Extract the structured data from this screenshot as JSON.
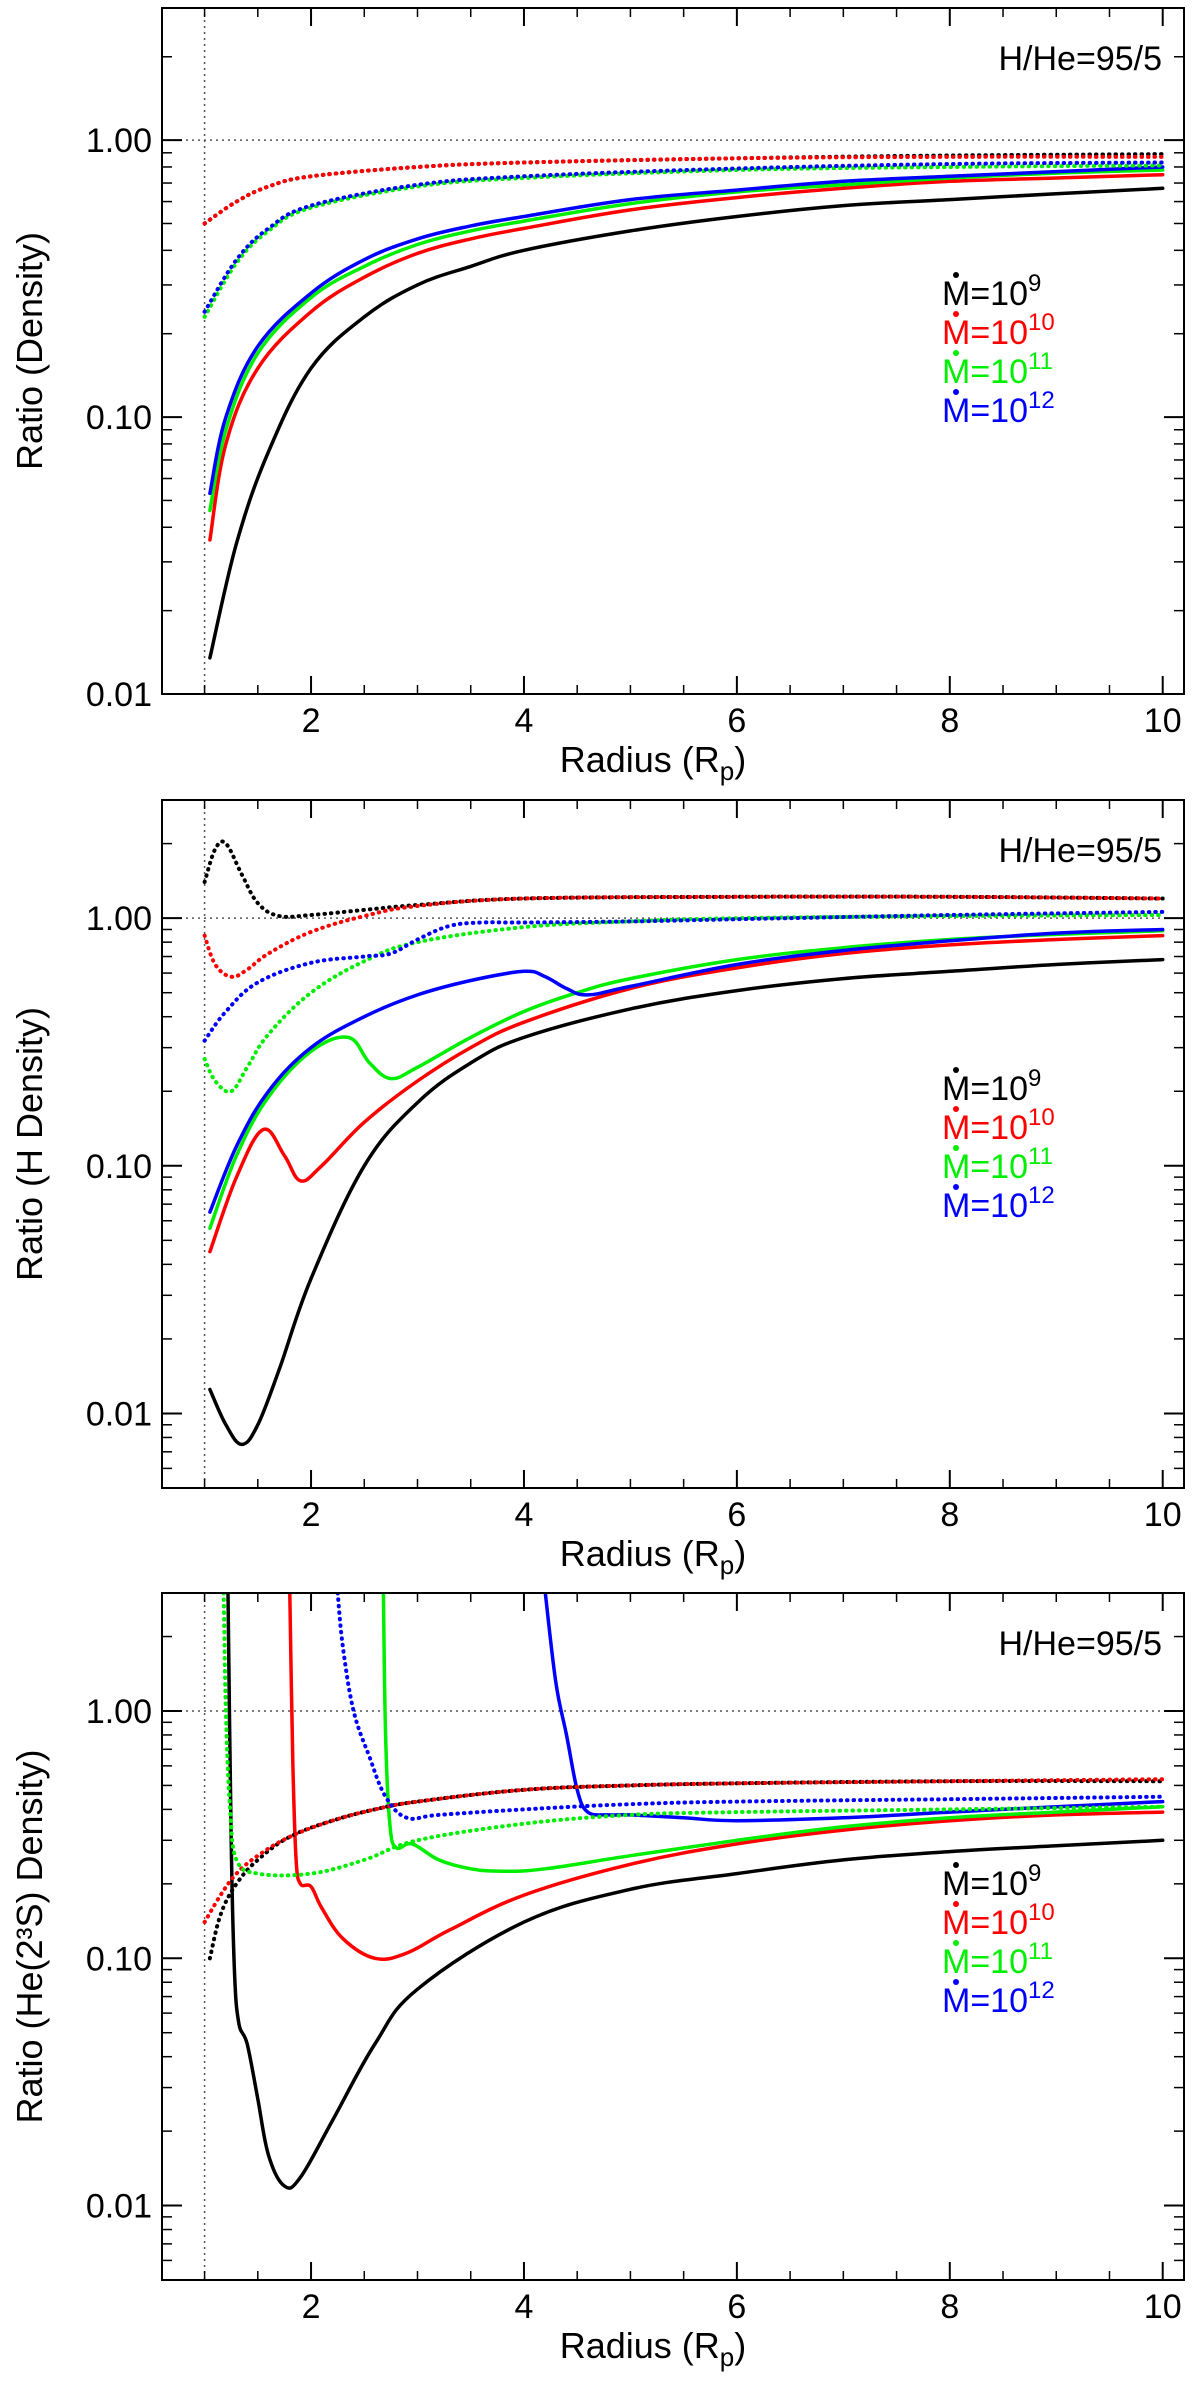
{
  "chart_data": [
    {
      "type": "line",
      "title": "",
      "annotation": "H/He=95/5",
      "xlabel": "Radius (R",
      "xlabel_sub": "p",
      "xlabel_close": ")",
      "ylabel": "Ratio (Density)",
      "xlim": [
        0.6,
        10.2
      ],
      "ylim": [
        0.01,
        3.0
      ],
      "yscale": "log",
      "xticks": [
        2,
        4,
        6,
        8,
        10
      ],
      "xtick_labels": [
        "2",
        "4",
        "6",
        "8",
        "10"
      ],
      "yticks": [
        0.01,
        0.1,
        1.0
      ],
      "ytick_labels": [
        "0.01",
        "0.10",
        "1.00"
      ],
      "reference_lines": {
        "x": 1.0,
        "y": 1.0
      },
      "legend": {
        "placement": "right",
        "entries": [
          {
            "text": "M=10",
            "sup": "9",
            "color": "#000000"
          },
          {
            "text": "M=10",
            "sup": "10",
            "color": "#ff0000"
          },
          {
            "text": "M=10",
            "sup": "11",
            "color": "#00ee00"
          },
          {
            "text": "M=10",
            "sup": "12",
            "color": "#0000ff"
          }
        ]
      },
      "series": [
        {
          "color": "#000000",
          "style": "solid",
          "x": [
            1.05,
            1.3,
            1.6,
            2.0,
            2.5,
            3.0,
            3.5,
            4.0,
            5.0,
            6.0,
            7.0,
            8.0,
            9.0,
            10.0
          ],
          "y": [
            0.0135,
            0.035,
            0.075,
            0.15,
            0.23,
            0.3,
            0.35,
            0.4,
            0.47,
            0.53,
            0.58,
            0.61,
            0.64,
            0.67
          ]
        },
        {
          "color": "#ff0000",
          "style": "solid",
          "x": [
            1.05,
            1.2,
            1.5,
            2.0,
            2.5,
            3.0,
            3.5,
            4.0,
            5.0,
            6.0,
            7.0,
            8.0,
            9.0,
            10.0
          ],
          "y": [
            0.036,
            0.08,
            0.15,
            0.24,
            0.32,
            0.39,
            0.44,
            0.48,
            0.56,
            0.62,
            0.67,
            0.71,
            0.73,
            0.75
          ]
        },
        {
          "color": "#00ee00",
          "style": "solid",
          "x": [
            1.05,
            1.2,
            1.5,
            2.0,
            2.5,
            3.0,
            3.5,
            4.0,
            5.0,
            6.0,
            7.0,
            8.0,
            9.0,
            10.0
          ],
          "y": [
            0.046,
            0.09,
            0.17,
            0.27,
            0.35,
            0.42,
            0.47,
            0.51,
            0.59,
            0.65,
            0.69,
            0.73,
            0.76,
            0.78
          ]
        },
        {
          "color": "#0000ff",
          "style": "solid",
          "x": [
            1.05,
            1.2,
            1.5,
            2.0,
            2.5,
            3.0,
            3.5,
            4.0,
            5.0,
            6.0,
            7.0,
            8.0,
            9.0,
            10.0
          ],
          "y": [
            0.053,
            0.1,
            0.18,
            0.28,
            0.37,
            0.44,
            0.49,
            0.53,
            0.61,
            0.66,
            0.71,
            0.74,
            0.77,
            0.8
          ]
        },
        {
          "color": "#000000",
          "style": "dotted",
          "x": [
            1.0,
            1.3,
            1.6,
            2.0,
            3.0,
            4.0,
            6.0,
            8.0,
            10.0
          ],
          "y": [
            0.5,
            0.6,
            0.68,
            0.74,
            0.8,
            0.83,
            0.86,
            0.88,
            0.89
          ]
        },
        {
          "color": "#ff0000",
          "style": "dotted",
          "x": [
            1.0,
            1.3,
            1.6,
            2.0,
            3.0,
            4.0,
            6.0,
            8.0,
            10.0
          ],
          "y": [
            0.5,
            0.6,
            0.68,
            0.74,
            0.8,
            0.83,
            0.86,
            0.87,
            0.87
          ]
        },
        {
          "color": "#00ee00",
          "style": "dotted",
          "x": [
            1.0,
            1.3,
            1.6,
            2.0,
            3.0,
            4.0,
            6.0,
            8.0,
            10.0
          ],
          "y": [
            0.23,
            0.36,
            0.47,
            0.57,
            0.68,
            0.73,
            0.78,
            0.8,
            0.81
          ]
        },
        {
          "color": "#0000ff",
          "style": "dotted",
          "x": [
            1.0,
            1.3,
            1.6,
            2.0,
            3.0,
            4.0,
            6.0,
            8.0,
            10.0
          ],
          "y": [
            0.24,
            0.37,
            0.48,
            0.58,
            0.69,
            0.74,
            0.79,
            0.82,
            0.83
          ]
        }
      ]
    },
    {
      "type": "line",
      "title": "",
      "annotation": "H/He=95/5",
      "xlabel": "Radius (R",
      "xlabel_sub": "p",
      "xlabel_close": ")",
      "ylabel": "Ratio (H Density)",
      "xlim": [
        0.6,
        10.2
      ],
      "ylim": [
        0.005,
        3.0
      ],
      "yscale": "log",
      "xticks": [
        2,
        4,
        6,
        8,
        10
      ],
      "xtick_labels": [
        "2",
        "4",
        "6",
        "8",
        "10"
      ],
      "yticks": [
        0.01,
        0.1,
        1.0
      ],
      "ytick_labels": [
        "0.01",
        "0.10",
        "1.00"
      ],
      "reference_lines": {
        "x": 1.0,
        "y": 1.0
      },
      "legend": {
        "placement": "right",
        "entries": [
          {
            "text": "M=10",
            "sup": "9",
            "color": "#000000"
          },
          {
            "text": "M=10",
            "sup": "10",
            "color": "#ff0000"
          },
          {
            "text": "M=10",
            "sup": "11",
            "color": "#00ee00"
          },
          {
            "text": "M=10",
            "sup": "12",
            "color": "#0000ff"
          }
        ]
      },
      "series": [
        {
          "color": "#000000",
          "style": "solid",
          "x": [
            1.05,
            1.2,
            1.35,
            1.5,
            1.7,
            2.0,
            2.5,
            3.0,
            3.5,
            4.0,
            5.0,
            6.0,
            7.0,
            8.0,
            9.0,
            10.0
          ],
          "y": [
            0.0125,
            0.009,
            0.0075,
            0.009,
            0.015,
            0.035,
            0.1,
            0.18,
            0.26,
            0.33,
            0.43,
            0.51,
            0.57,
            0.61,
            0.65,
            0.68
          ]
        },
        {
          "color": "#ff0000",
          "style": "solid",
          "x": [
            1.05,
            1.3,
            1.55,
            1.75,
            1.9,
            2.1,
            2.5,
            3.0,
            3.5,
            4.0,
            5.0,
            6.0,
            7.0,
            8.0,
            9.0,
            10.0
          ],
          "y": [
            0.045,
            0.09,
            0.14,
            0.11,
            0.087,
            0.1,
            0.15,
            0.22,
            0.3,
            0.38,
            0.52,
            0.63,
            0.72,
            0.78,
            0.82,
            0.85
          ]
        },
        {
          "color": "#00ee00",
          "style": "solid",
          "x": [
            1.05,
            1.3,
            1.6,
            2.0,
            2.35,
            2.55,
            2.75,
            3.0,
            3.5,
            4.0,
            4.5,
            5.0,
            6.0,
            7.0,
            8.0,
            9.0,
            10.0
          ],
          "y": [
            0.056,
            0.11,
            0.19,
            0.29,
            0.33,
            0.26,
            0.225,
            0.25,
            0.33,
            0.42,
            0.5,
            0.57,
            0.68,
            0.76,
            0.82,
            0.86,
            0.89
          ]
        },
        {
          "color": "#0000ff",
          "style": "solid",
          "x": [
            1.05,
            1.3,
            1.6,
            2.0,
            2.5,
            3.0,
            3.5,
            4.0,
            4.2,
            4.4,
            4.6,
            5.0,
            6.0,
            7.0,
            8.0,
            9.0,
            10.0
          ],
          "y": [
            0.065,
            0.12,
            0.2,
            0.3,
            0.4,
            0.49,
            0.56,
            0.61,
            0.58,
            0.52,
            0.49,
            0.53,
            0.65,
            0.74,
            0.81,
            0.87,
            0.9
          ]
        },
        {
          "color": "#000000",
          "style": "dotted",
          "x": [
            1.0,
            1.1,
            1.2,
            1.35,
            1.5,
            1.7,
            2.0,
            2.5,
            3.0,
            4.0,
            6.0,
            8.0,
            10.0
          ],
          "y": [
            1.4,
            1.9,
            2.0,
            1.5,
            1.15,
            1.02,
            1.03,
            1.08,
            1.13,
            1.2,
            1.22,
            1.22,
            1.2
          ]
        },
        {
          "color": "#ff0000",
          "style": "dotted",
          "x": [
            1.0,
            1.1,
            1.25,
            1.4,
            1.6,
            2.0,
            2.5,
            3.0,
            4.0,
            6.0,
            8.0,
            10.0
          ],
          "y": [
            0.85,
            0.65,
            0.58,
            0.62,
            0.72,
            0.88,
            1.02,
            1.12,
            1.2,
            1.22,
            1.22,
            1.2
          ]
        },
        {
          "color": "#00ee00",
          "style": "dotted",
          "x": [
            1.0,
            1.1,
            1.25,
            1.4,
            1.6,
            2.0,
            2.5,
            3.0,
            4.0,
            5.0,
            6.0,
            8.0,
            10.0
          ],
          "y": [
            0.27,
            0.22,
            0.2,
            0.25,
            0.34,
            0.5,
            0.67,
            0.8,
            0.92,
            0.97,
            1.0,
            1.02,
            1.03
          ]
        },
        {
          "color": "#0000ff",
          "style": "dotted",
          "x": [
            1.0,
            1.2,
            1.5,
            2.0,
            2.5,
            2.75,
            3.0,
            3.3,
            3.6,
            4.0,
            5.0,
            6.0,
            8.0,
            10.0
          ],
          "y": [
            0.32,
            0.42,
            0.55,
            0.66,
            0.7,
            0.72,
            0.82,
            0.93,
            0.96,
            0.96,
            0.97,
            0.99,
            1.03,
            1.06
          ]
        }
      ]
    },
    {
      "type": "line",
      "title": "",
      "annotation": "H/He=95/5",
      "xlabel": "Radius (R",
      "xlabel_sub": "p",
      "xlabel_close": ")",
      "ylabel": "Ratio (He(2³S) Density)",
      "xlim": [
        0.6,
        10.2
      ],
      "ylim": [
        0.005,
        3.0
      ],
      "yscale": "log",
      "xticks": [
        2,
        4,
        6,
        8,
        10
      ],
      "xtick_labels": [
        "2",
        "4",
        "6",
        "8",
        "10"
      ],
      "yticks": [
        0.01,
        0.1,
        1.0
      ],
      "ytick_labels": [
        "0.01",
        "0.10",
        "1.00"
      ],
      "reference_lines": {
        "x": 1.0,
        "y": 1.0
      },
      "legend": {
        "placement": "right",
        "entries": [
          {
            "text": "M=10",
            "sup": "9",
            "color": "#000000"
          },
          {
            "text": "M=10",
            "sup": "10",
            "color": "#ff0000"
          },
          {
            "text": "M=10",
            "sup": "11",
            "color": "#00ee00"
          },
          {
            "text": "M=10",
            "sup": "12",
            "color": "#0000ff"
          }
        ]
      },
      "series": [
        {
          "color": "#000000",
          "style": "solid",
          "x": [
            1.22,
            1.25,
            1.28,
            1.32,
            1.4,
            1.5,
            1.6,
            1.75,
            1.9,
            2.2,
            2.6,
            3.0,
            4.0,
            5.0,
            6.0,
            7.0,
            8.0,
            9.0,
            10.0
          ],
          "y": [
            3.0,
            0.3,
            0.09,
            0.055,
            0.045,
            0.027,
            0.016,
            0.012,
            0.013,
            0.022,
            0.045,
            0.075,
            0.14,
            0.19,
            0.22,
            0.25,
            0.27,
            0.285,
            0.3
          ]
        },
        {
          "color": "#ff0000",
          "style": "solid",
          "x": [
            1.8,
            1.83,
            1.86,
            1.9,
            2.0,
            2.1,
            2.3,
            2.6,
            2.9,
            3.3,
            4.0,
            5.0,
            6.0,
            7.0,
            8.0,
            9.0,
            10.0
          ],
          "y": [
            3.0,
            0.6,
            0.25,
            0.2,
            0.195,
            0.16,
            0.12,
            0.1,
            0.105,
            0.13,
            0.18,
            0.24,
            0.29,
            0.33,
            0.36,
            0.38,
            0.39
          ]
        },
        {
          "color": "#00ee00",
          "style": "solid",
          "x": [
            2.68,
            2.7,
            2.74,
            2.8,
            2.95,
            3.2,
            3.5,
            3.8,
            4.2,
            5.0,
            6.0,
            7.0,
            8.0,
            9.0,
            10.0
          ],
          "y": [
            3.0,
            0.8,
            0.35,
            0.28,
            0.29,
            0.25,
            0.23,
            0.225,
            0.23,
            0.26,
            0.3,
            0.34,
            0.37,
            0.39,
            0.41
          ]
        },
        {
          "color": "#0000ff",
          "style": "solid",
          "x": [
            4.2,
            4.3,
            4.4,
            4.5,
            4.6,
            4.8,
            5.0,
            5.5,
            6.0,
            7.0,
            8.0,
            9.0,
            10.0
          ],
          "y": [
            3.0,
            1.3,
            0.8,
            0.48,
            0.39,
            0.38,
            0.38,
            0.37,
            0.36,
            0.37,
            0.39,
            0.41,
            0.43
          ]
        },
        {
          "color": "#000000",
          "style": "dotted",
          "x": [
            1.05,
            1.15,
            1.3,
            1.5,
            1.8,
            2.2,
            2.6,
            3.0,
            4.0,
            5.0,
            6.0,
            8.0,
            10.0
          ],
          "y": [
            0.1,
            0.15,
            0.2,
            0.25,
            0.31,
            0.36,
            0.4,
            0.43,
            0.48,
            0.5,
            0.51,
            0.52,
            0.52
          ]
        },
        {
          "color": "#ff0000",
          "style": "dotted",
          "x": [
            1.0,
            1.15,
            1.3,
            1.5,
            1.8,
            2.2,
            2.6,
            3.0,
            4.0,
            5.0,
            6.0,
            8.0,
            10.0
          ],
          "y": [
            0.14,
            0.18,
            0.22,
            0.26,
            0.31,
            0.36,
            0.4,
            0.43,
            0.48,
            0.5,
            0.51,
            0.52,
            0.53
          ]
        },
        {
          "color": "#00ee00",
          "style": "dotted",
          "x": [
            1.18,
            1.2,
            1.24,
            1.3,
            1.5,
            2.0,
            2.5,
            3.0,
            4.0,
            5.0,
            6.0,
            8.0,
            10.0
          ],
          "y": [
            3.0,
            1.0,
            0.4,
            0.25,
            0.22,
            0.22,
            0.25,
            0.3,
            0.35,
            0.38,
            0.39,
            0.4,
            0.41
          ]
        },
        {
          "color": "#0000ff",
          "style": "dotted",
          "x": [
            2.25,
            2.3,
            2.4,
            2.55,
            2.7,
            2.9,
            3.2,
            4.0,
            5.0,
            6.0,
            8.0,
            10.0
          ],
          "y": [
            3.0,
            1.8,
            1.0,
            0.65,
            0.45,
            0.37,
            0.38,
            0.4,
            0.42,
            0.43,
            0.44,
            0.45
          ]
        }
      ]
    }
  ]
}
